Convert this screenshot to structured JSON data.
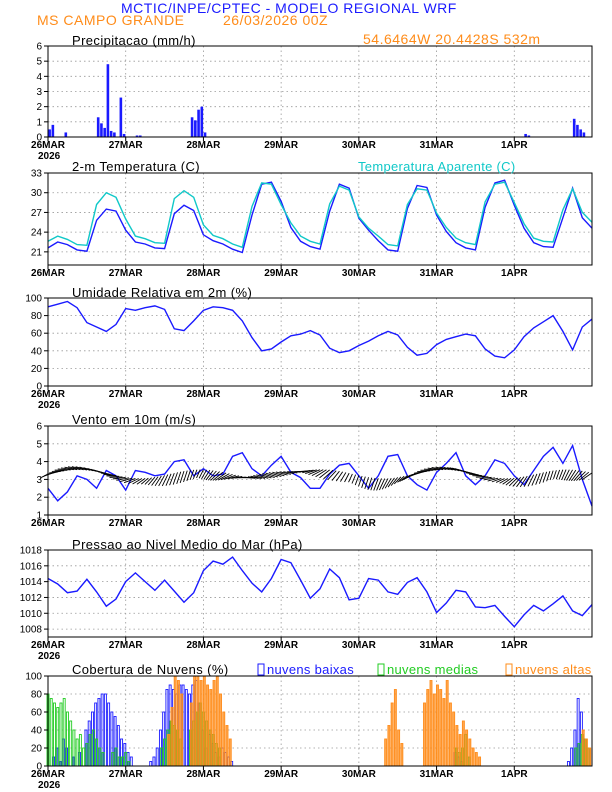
{
  "header": {
    "title": "MCTIC/INPE/CPTEC - MODELO REGIONAL WRF",
    "location": "MS CAMPO GRANDE",
    "run": "26/03/2026 00Z",
    "coords": "54.6464W 20.4428S 532m"
  },
  "colors": {
    "blue": "#1a1aff",
    "cyan": "#10c8c8",
    "orange": "#ff8c1a",
    "green": "#22cc22",
    "black": "#000000",
    "grid": "#999999"
  },
  "chart_data": [
    {
      "id": "precip",
      "type": "bar",
      "title": "Precipitacao (mm/h)",
      "ylim": [
        0,
        6
      ],
      "yticks": [
        0,
        1,
        2,
        3,
        4,
        5,
        6
      ],
      "x": [
        0.5,
        1.5,
        5.5,
        15.5,
        16.5,
        17.5,
        18.5,
        19.5,
        20.5,
        22.5,
        23.5,
        27.5,
        28.5,
        44.5,
        45.5,
        46.5,
        47.5,
        48.5,
        147.5,
        148.5,
        162.5,
        163.5,
        164.5,
        165.5
      ],
      "values": [
        0.5,
        0.8,
        0.3,
        1.3,
        0.9,
        0.6,
        4.8,
        0.4,
        0.3,
        2.6,
        0.2,
        0.1,
        0.1,
        1.3,
        1.1,
        1.8,
        2.0,
        0.3,
        0.2,
        0.1,
        1.2,
        0.8,
        0.5,
        0.3
      ]
    },
    {
      "id": "temp",
      "type": "line",
      "title": "2-m Temperatura (C)",
      "ylim": [
        19,
        33
      ],
      "yticks": [
        21,
        24,
        27,
        30,
        33
      ],
      "series": [
        {
          "name": "2-m Temperatura (C)",
          "x": [
            0,
            3,
            6,
            9,
            12,
            15,
            18,
            21,
            24,
            27,
            30,
            33,
            36,
            39,
            42,
            45,
            48,
            51,
            54,
            57,
            60,
            63,
            66,
            69,
            72,
            75,
            78,
            81,
            84,
            87,
            90,
            93,
            96,
            99,
            102,
            105,
            108,
            111,
            114,
            117,
            120,
            123,
            126,
            129,
            132,
            135,
            138,
            141,
            144,
            147,
            150,
            153,
            156,
            159,
            162,
            165,
            168
          ],
          "values": [
            21.6,
            22.5,
            22.1,
            21.3,
            21.1,
            25.8,
            27.5,
            27.2,
            24.3,
            22.5,
            22.2,
            21.6,
            21.5,
            26.8,
            28.1,
            27.3,
            23.6,
            22.7,
            22.2,
            21.4,
            20.9,
            26.6,
            31.3,
            31.6,
            28.7,
            24.7,
            22.6,
            21.8,
            21.4,
            27.2,
            31.3,
            30.7,
            26.1,
            24.3,
            22.7,
            21.3,
            21.1,
            27.6,
            31.1,
            30.8,
            26.6,
            24.1,
            22.4,
            21.6,
            21.3,
            27.8,
            31.5,
            31.9,
            28.1,
            24.6,
            22.4,
            21.8,
            21.7,
            26.2,
            30.7,
            26.2,
            24.6
          ]
        },
        {
          "name": "Temperatura Aparente (C)",
          "x": [
            0,
            3,
            6,
            9,
            12,
            15,
            18,
            21,
            24,
            27,
            30,
            33,
            36,
            39,
            42,
            45,
            48,
            51,
            54,
            57,
            60,
            63,
            66,
            69,
            72,
            75,
            78,
            81,
            84,
            87,
            90,
            93,
            96,
            99,
            102,
            105,
            108,
            111,
            114,
            117,
            120,
            123,
            126,
            129,
            132,
            135,
            138,
            141,
            144,
            147,
            150,
            153,
            156,
            159,
            162,
            165,
            168
          ],
          "values": [
            22.6,
            23.4,
            22.9,
            22.1,
            22.0,
            28.2,
            30.0,
            29.3,
            26.0,
            23.4,
            23.0,
            22.4,
            22.3,
            29.1,
            30.3,
            29.3,
            25.1,
            23.5,
            23.0,
            22.2,
            21.7,
            27.9,
            31.5,
            31.3,
            28.2,
            25.4,
            23.4,
            22.6,
            22.2,
            28.3,
            31.0,
            30.4,
            26.3,
            24.6,
            23.4,
            22.1,
            21.9,
            28.2,
            30.6,
            30.4,
            26.9,
            24.7,
            23.1,
            22.4,
            22.1,
            28.6,
            31.3,
            31.6,
            28.5,
            25.3,
            23.1,
            22.6,
            22.5,
            27.4,
            30.6,
            27.0,
            25.5
          ]
        }
      ]
    },
    {
      "id": "rh",
      "type": "line",
      "title": "Umidade Relativa em 2m (%)",
      "ylim": [
        0,
        100
      ],
      "yticks": [
        0,
        20,
        40,
        60,
        80,
        100
      ],
      "series": [
        {
          "name": "Umidade Relativa em 2m (%)",
          "x": [
            0,
            3,
            6,
            9,
            12,
            15,
            18,
            21,
            24,
            27,
            30,
            33,
            36,
            39,
            42,
            45,
            48,
            51,
            54,
            57,
            60,
            63,
            66,
            69,
            72,
            75,
            78,
            81,
            84,
            87,
            90,
            93,
            96,
            99,
            102,
            105,
            108,
            111,
            114,
            117,
            120,
            123,
            126,
            129,
            132,
            135,
            138,
            141,
            144,
            147,
            150,
            153,
            156,
            159,
            162,
            165,
            168
          ],
          "values": [
            90,
            93,
            96,
            89,
            72,
            67,
            62,
            70,
            88,
            86,
            89,
            91,
            87,
            65,
            63,
            74,
            86,
            90,
            89,
            86,
            74,
            55,
            40,
            42,
            50,
            57,
            59,
            63,
            58,
            43,
            38,
            40,
            46,
            51,
            57,
            62,
            58,
            44,
            35,
            37,
            47,
            53,
            56,
            59,
            57,
            42,
            34,
            32,
            41,
            56,
            66,
            73,
            80,
            62,
            41,
            67,
            76
          ]
        }
      ]
    },
    {
      "id": "wind",
      "type": "line",
      "title": "Vento em 10m (m/s)",
      "ylim": [
        1,
        6
      ],
      "yticks": [
        1,
        2,
        3,
        4,
        5,
        6
      ],
      "series": [
        {
          "name": "Vento em 10m (m/s)",
          "x": [
            0,
            3,
            6,
            9,
            12,
            15,
            18,
            21,
            24,
            27,
            30,
            33,
            36,
            39,
            42,
            45,
            48,
            51,
            54,
            57,
            60,
            63,
            66,
            69,
            72,
            75,
            78,
            81,
            84,
            87,
            90,
            93,
            96,
            99,
            102,
            105,
            108,
            111,
            114,
            117,
            120,
            123,
            126,
            129,
            132,
            135,
            138,
            141,
            144,
            147,
            150,
            153,
            156,
            159,
            162,
            165,
            168
          ],
          "values": [
            2.5,
            1.8,
            2.3,
            3.2,
            3.0,
            2.5,
            3.5,
            3.2,
            2.4,
            3.5,
            3.4,
            3.2,
            3.3,
            4.0,
            4.1,
            3.2,
            3.6,
            3.2,
            3.3,
            4.3,
            4.5,
            3.6,
            3.2,
            3.8,
            4.3,
            3.4,
            3.1,
            2.5,
            2.5,
            3.3,
            3.8,
            3.9,
            3.2,
            2.5,
            3.2,
            4.3,
            4.4,
            3.2,
            2.7,
            2.4,
            3.4,
            3.9,
            4.5,
            3.2,
            2.7,
            3.2,
            4.1,
            3.9,
            3.2,
            2.7,
            3.5,
            4.3,
            4.8,
            3.9,
            4.9,
            3.0,
            1.5
          ]
        }
      ]
    },
    {
      "id": "press",
      "type": "line",
      "title": "Pressao ao Nivel Medio do Mar (hPa)",
      "ylim": [
        1007,
        1018
      ],
      "yticks": [
        1008,
        1010,
        1012,
        1014,
        1016,
        1018
      ],
      "series": [
        {
          "name": "Pressao ao Nivel Medio do Mar (hPa)",
          "x": [
            0,
            3,
            6,
            9,
            12,
            15,
            18,
            21,
            24,
            27,
            30,
            33,
            36,
            39,
            42,
            45,
            48,
            51,
            54,
            57,
            60,
            63,
            66,
            69,
            72,
            75,
            78,
            81,
            84,
            87,
            90,
            93,
            96,
            99,
            102,
            105,
            108,
            111,
            114,
            117,
            120,
            123,
            126,
            129,
            132,
            135,
            138,
            141,
            144,
            147,
            150,
            153,
            156,
            159,
            162,
            165,
            168
          ],
          "values": [
            1014.4,
            1013.7,
            1012.6,
            1012.8,
            1014.3,
            1012.7,
            1010.9,
            1011.8,
            1014.0,
            1015.1,
            1014.0,
            1012.9,
            1014.2,
            1012.8,
            1011.4,
            1012.6,
            1015.4,
            1016.6,
            1016.2,
            1017.1,
            1015.4,
            1013.8,
            1012.7,
            1014.4,
            1016.8,
            1016.4,
            1014.2,
            1011.9,
            1013.1,
            1015.6,
            1014.5,
            1011.7,
            1011.9,
            1014.4,
            1014.2,
            1012.7,
            1012.4,
            1013.9,
            1014.5,
            1012.7,
            1010.1,
            1011.3,
            1012.9,
            1012.7,
            1010.8,
            1010.7,
            1011.0,
            1009.6,
            1008.3,
            1009.8,
            1011.0,
            1010.3,
            1011.2,
            1012.2,
            1010.3,
            1009.7,
            1011.1
          ]
        }
      ]
    },
    {
      "id": "clouds",
      "type": "bar",
      "title": "Cobertura de Nuvens (%)",
      "ylim": [
        0,
        100
      ],
      "yticks": [
        0,
        20,
        40,
        60,
        80,
        100
      ],
      "legend": [
        "nuvens baixas",
        "nuvens medias",
        "nuvens altas"
      ],
      "series": [
        {
          "name": "nuvens baixas",
          "x": [
            2,
            3,
            4,
            5,
            6,
            8,
            10,
            12,
            13,
            14,
            15,
            16,
            17,
            18,
            19,
            20,
            21,
            22,
            23,
            24,
            25,
            26,
            32,
            33,
            34,
            35,
            36,
            37,
            38,
            39,
            40,
            41,
            42,
            43,
            44,
            45,
            46,
            47,
            48,
            49,
            50,
            51,
            52,
            53,
            54,
            55,
            56,
            57,
            126,
            127,
            128,
            161,
            162,
            163,
            164,
            165,
            166,
            167
          ],
          "values": [
            10,
            20,
            5,
            30,
            20,
            10,
            15,
            40,
            50,
            60,
            70,
            75,
            80,
            80,
            70,
            60,
            55,
            45,
            30,
            25,
            15,
            10,
            5,
            10,
            20,
            40,
            60,
            85,
            90,
            85,
            80,
            90,
            90,
            85,
            80,
            90,
            95,
            70,
            40,
            20,
            35,
            25,
            15,
            10,
            20,
            15,
            10,
            5,
            15,
            10,
            5,
            5,
            20,
            40,
            75,
            60,
            30,
            20
          ]
        },
        {
          "name": "nuvens medias",
          "x": [
            0,
            1,
            2,
            3,
            4,
            5,
            6,
            7,
            8,
            9,
            10,
            11,
            12,
            13,
            14,
            15,
            16,
            17,
            20,
            21,
            22,
            23,
            24,
            25,
            35,
            36,
            37,
            38,
            39,
            40,
            41,
            44,
            45,
            46,
            47,
            48,
            49,
            50,
            51,
            52,
            53,
            126,
            127,
            128,
            129,
            130,
            163,
            164,
            165,
            166,
            167
          ],
          "values": [
            80,
            75,
            70,
            65,
            70,
            75,
            60,
            50,
            40,
            30,
            35,
            20,
            25,
            35,
            40,
            30,
            20,
            15,
            15,
            20,
            10,
            10,
            15,
            5,
            20,
            30,
            40,
            50,
            45,
            40,
            30,
            40,
            50,
            60,
            70,
            60,
            50,
            40,
            35,
            25,
            20,
            20,
            15,
            20,
            35,
            10,
            20,
            25,
            35,
            30,
            20
          ]
        },
        {
          "name": "nuvens altas",
          "x": [
            37,
            38,
            39,
            40,
            41,
            44,
            45,
            46,
            47,
            48,
            49,
            50,
            51,
            52,
            53,
            54,
            55,
            56,
            104,
            105,
            106,
            107,
            108,
            109,
            116,
            117,
            118,
            119,
            120,
            121,
            122,
            123,
            124,
            125,
            126,
            127,
            128,
            129,
            130,
            131,
            132,
            133,
            165,
            166,
            167
          ],
          "values": [
            35,
            65,
            100,
            95,
            80,
            70,
            100,
            100,
            95,
            100,
            90,
            85,
            95,
            100,
            80,
            60,
            45,
            30,
            30,
            45,
            70,
            85,
            40,
            25,
            70,
            85,
            95,
            80,
            90,
            85,
            75,
            95,
            70,
            60,
            45,
            35,
            50,
            40,
            30,
            20,
            15,
            10,
            40,
            30,
            20
          ]
        }
      ]
    }
  ],
  "x_axis": {
    "hours_max": 168,
    "labels": [
      {
        "hour": 0,
        "text": "26MAR"
      },
      {
        "hour": 24,
        "text": "27MAR"
      },
      {
        "hour": 48,
        "text": "28MAR"
      },
      {
        "hour": 72,
        "text": "29MAR"
      },
      {
        "hour": 96,
        "text": "30MAR"
      },
      {
        "hour": 120,
        "text": "31MAR"
      },
      {
        "hour": 144,
        "text": "1APR"
      }
    ],
    "year": "2026"
  }
}
